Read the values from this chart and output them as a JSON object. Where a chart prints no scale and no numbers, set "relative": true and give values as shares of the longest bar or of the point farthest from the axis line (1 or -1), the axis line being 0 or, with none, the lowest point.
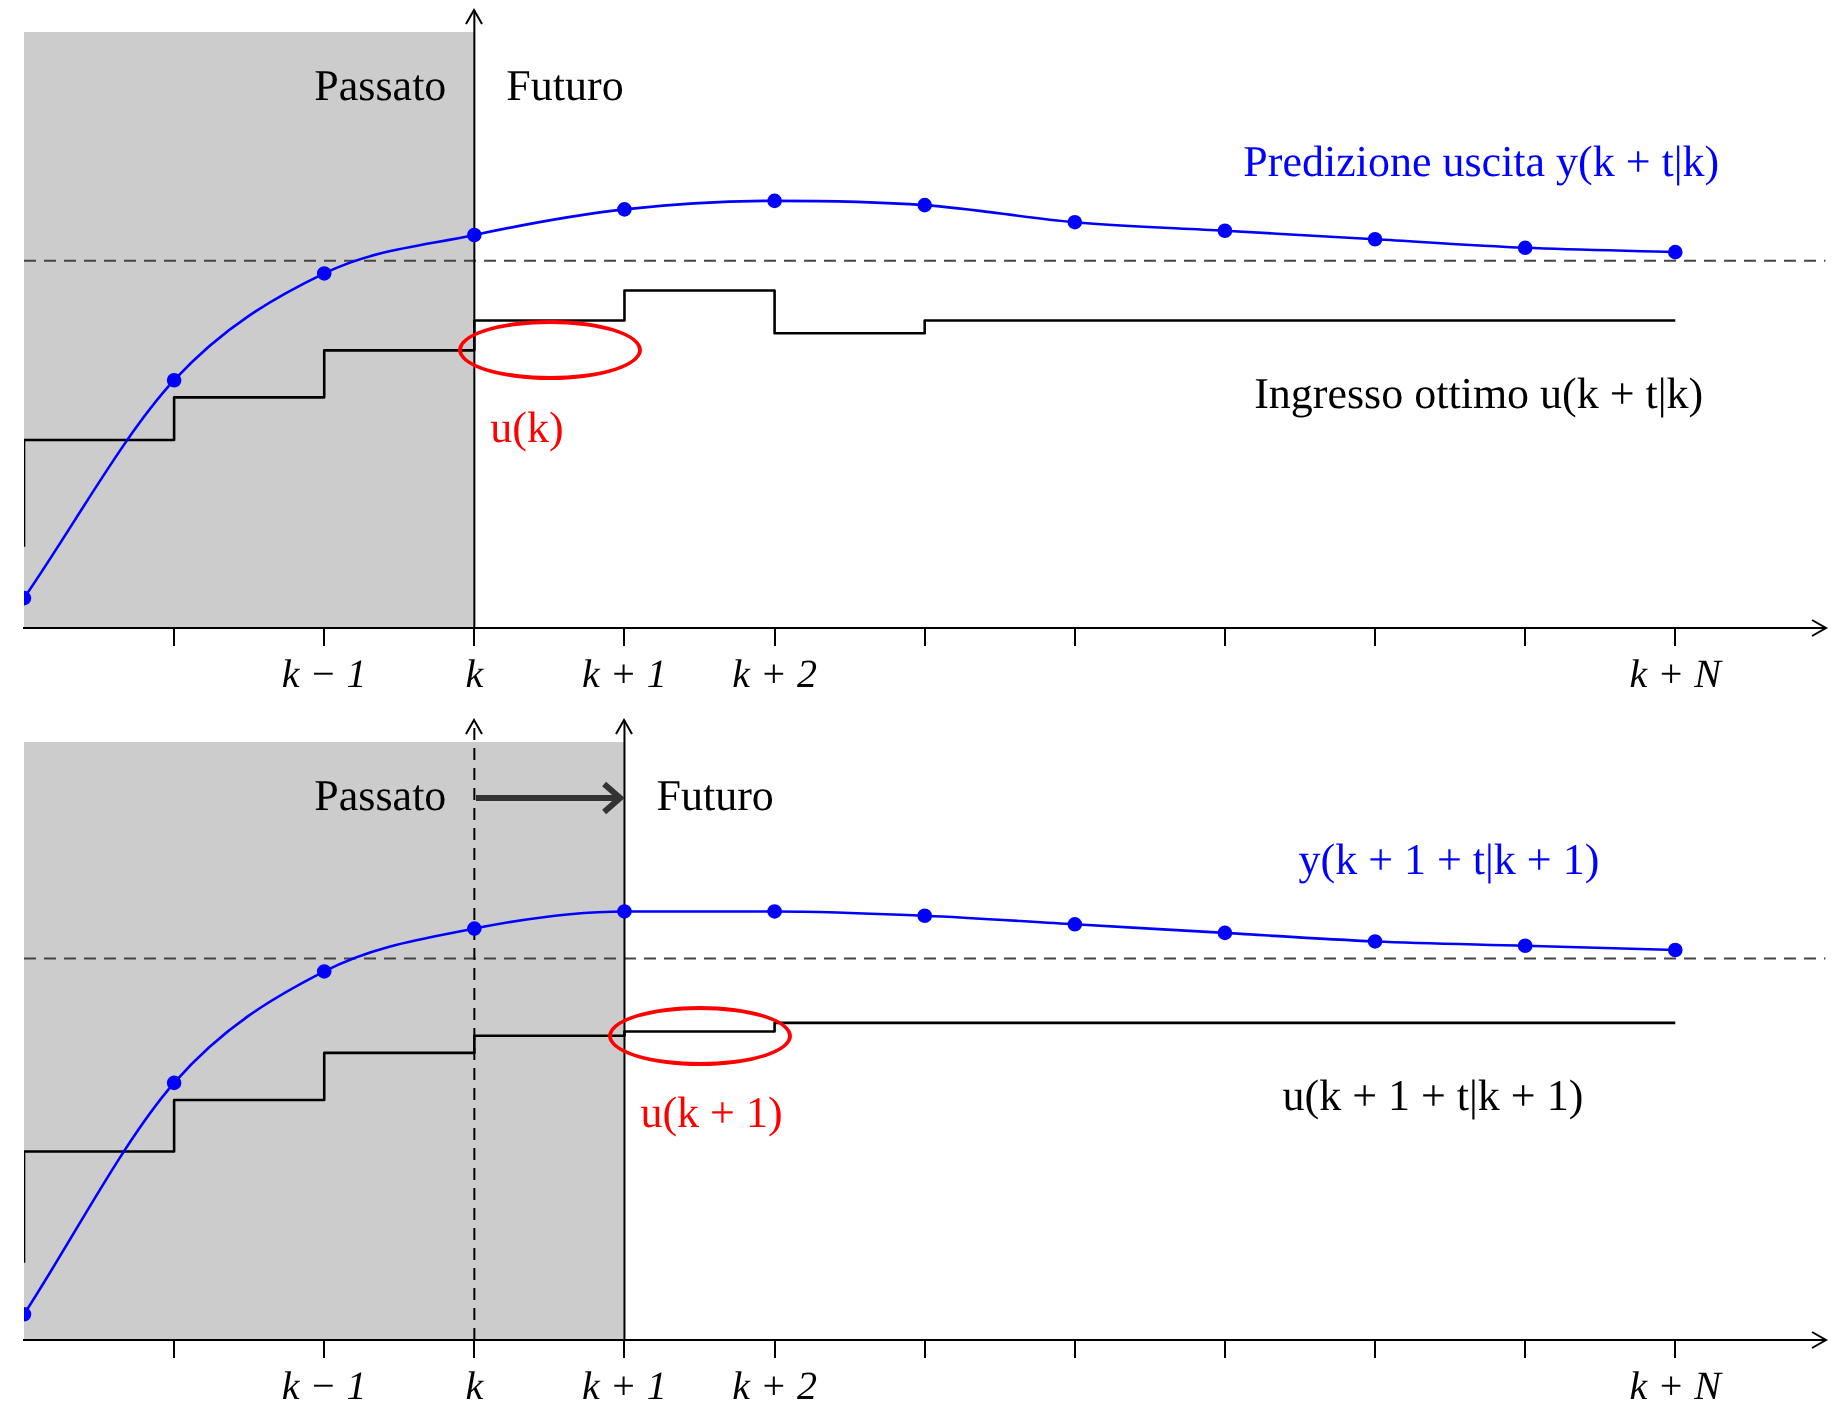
{
  "chart_data": [
    {
      "type": "line",
      "relative": true,
      "categories": [
        null,
        null,
        "k − 1",
        "k",
        "k + 1",
        "k + 2",
        null,
        null,
        null,
        null,
        null,
        "k + N"
      ],
      "tick_labels": "x",
      "grid": false,
      "legend": false,
      "series": [
        {
          "name": "Predizione uscita y(k + t|k)",
          "type": "line",
          "color": "#0000ff",
          "marker": "circle",
          "values": [
            0.07,
            0.58,
            0.83,
            0.92,
            0.98,
            1,
            0.99,
            0.95,
            0.93,
            0.91,
            0.89,
            0.88
          ]
        },
        {
          "name": "Ingresso ottimo u(k + t|k)",
          "type": "step",
          "color": "#000000",
          "marker": "none",
          "values": [
            0.19,
            0.44,
            0.54,
            0.65,
            0.72,
            0.79,
            0.69,
            0.72,
            0.72,
            0.72,
            0.72,
            0.72
          ]
        }
      ],
      "ref_lines": [
        {
          "axis": "y",
          "value": 0.86,
          "color": "#444444",
          "line_style": "dashed"
        },
        {
          "axis": "x",
          "value": "k",
          "color": "#000000",
          "line_style": "solid"
        }
      ],
      "annotations": [
        "Passato",
        "Futuro",
        {
          "text": "u(k)",
          "x": "k",
          "y": 0.65
        }
      ]
    },
    {
      "type": "line",
      "relative": true,
      "categories": [
        null,
        null,
        "k − 1",
        "k",
        "k + 1",
        "k + 2",
        null,
        null,
        null,
        null,
        null,
        "k + N"
      ],
      "tick_labels": "x",
      "grid": false,
      "legend": false,
      "series": [
        {
          "name": "y(k + 1 + t|k + 1)",
          "type": "line",
          "color": "#0000ff",
          "marker": "circle",
          "values": [
            0.06,
            0.6,
            0.86,
            0.96,
            1,
            1,
            0.99,
            0.97,
            0.95,
            0.93,
            0.92,
            0.91
          ]
        },
        {
          "name": "u(k + 1 + t|k + 1)",
          "type": "step",
          "color": "#000000",
          "marker": "none",
          "values": [
            0.18,
            0.44,
            0.56,
            0.67,
            0.71,
            0.72,
            0.74,
            0.74,
            0.74,
            0.74,
            0.74,
            0.74
          ]
        }
      ],
      "ref_lines": [
        {
          "axis": "y",
          "value": 0.89,
          "color": "#444444",
          "line_style": "dashed"
        },
        {
          "axis": "x",
          "value": "k",
          "color": "#000000",
          "line_style": "dashed"
        },
        {
          "axis": "x",
          "value": "k + 1",
          "color": "#000000",
          "line_style": "solid"
        }
      ],
      "annotations": [
        "Passato",
        "Futuro",
        {
          "text": "u(k + 1)",
          "x": "k + 1",
          "y": 0.71
        }
      ]
    }
  ]
}
